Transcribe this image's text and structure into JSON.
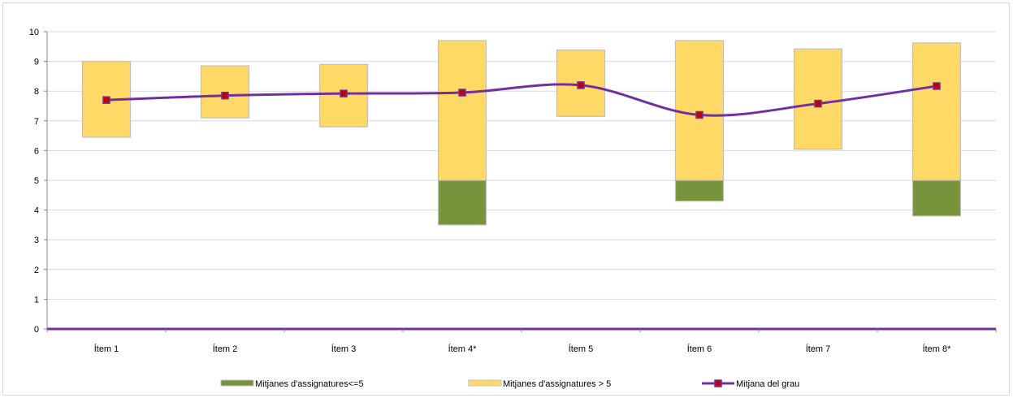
{
  "chart_data": {
    "type": "bar",
    "categories": [
      "Ítem 1",
      "Ítem 2",
      "Ítem 3",
      "Ítem 4*",
      "Ítem 5",
      "Ítem 6",
      "Ítem 7",
      "Ítem 8*"
    ],
    "ylim": [
      0,
      10
    ],
    "yticks": [
      0,
      1,
      2,
      3,
      4,
      5,
      6,
      7,
      8,
      9,
      10
    ],
    "grid": true,
    "legend_position": "bottom",
    "series": [
      {
        "name": "Mitjanes d'assignatures<=5",
        "type": "floating-bar",
        "color": "#77933c",
        "low": [
          null,
          null,
          null,
          3.5,
          null,
          4.3,
          null,
          3.8
        ],
        "high": [
          null,
          null,
          null,
          5.0,
          null,
          5.0,
          null,
          5.0
        ]
      },
      {
        "name": "Mitjanes d'assignatures > 5",
        "type": "floating-bar",
        "color": "#ffd966",
        "low": [
          6.45,
          7.1,
          6.8,
          5.0,
          7.15,
          5.0,
          6.05,
          5.0
        ],
        "high": [
          9.0,
          8.85,
          8.9,
          9.7,
          9.38,
          9.7,
          9.42,
          9.62
        ]
      },
      {
        "name": "Mitjana del grau",
        "type": "line",
        "color": "#7030a0",
        "marker_color": "#c00000",
        "values": [
          7.7,
          7.85,
          7.92,
          7.95,
          8.2,
          7.2,
          7.58,
          8.17
        ]
      }
    ]
  }
}
